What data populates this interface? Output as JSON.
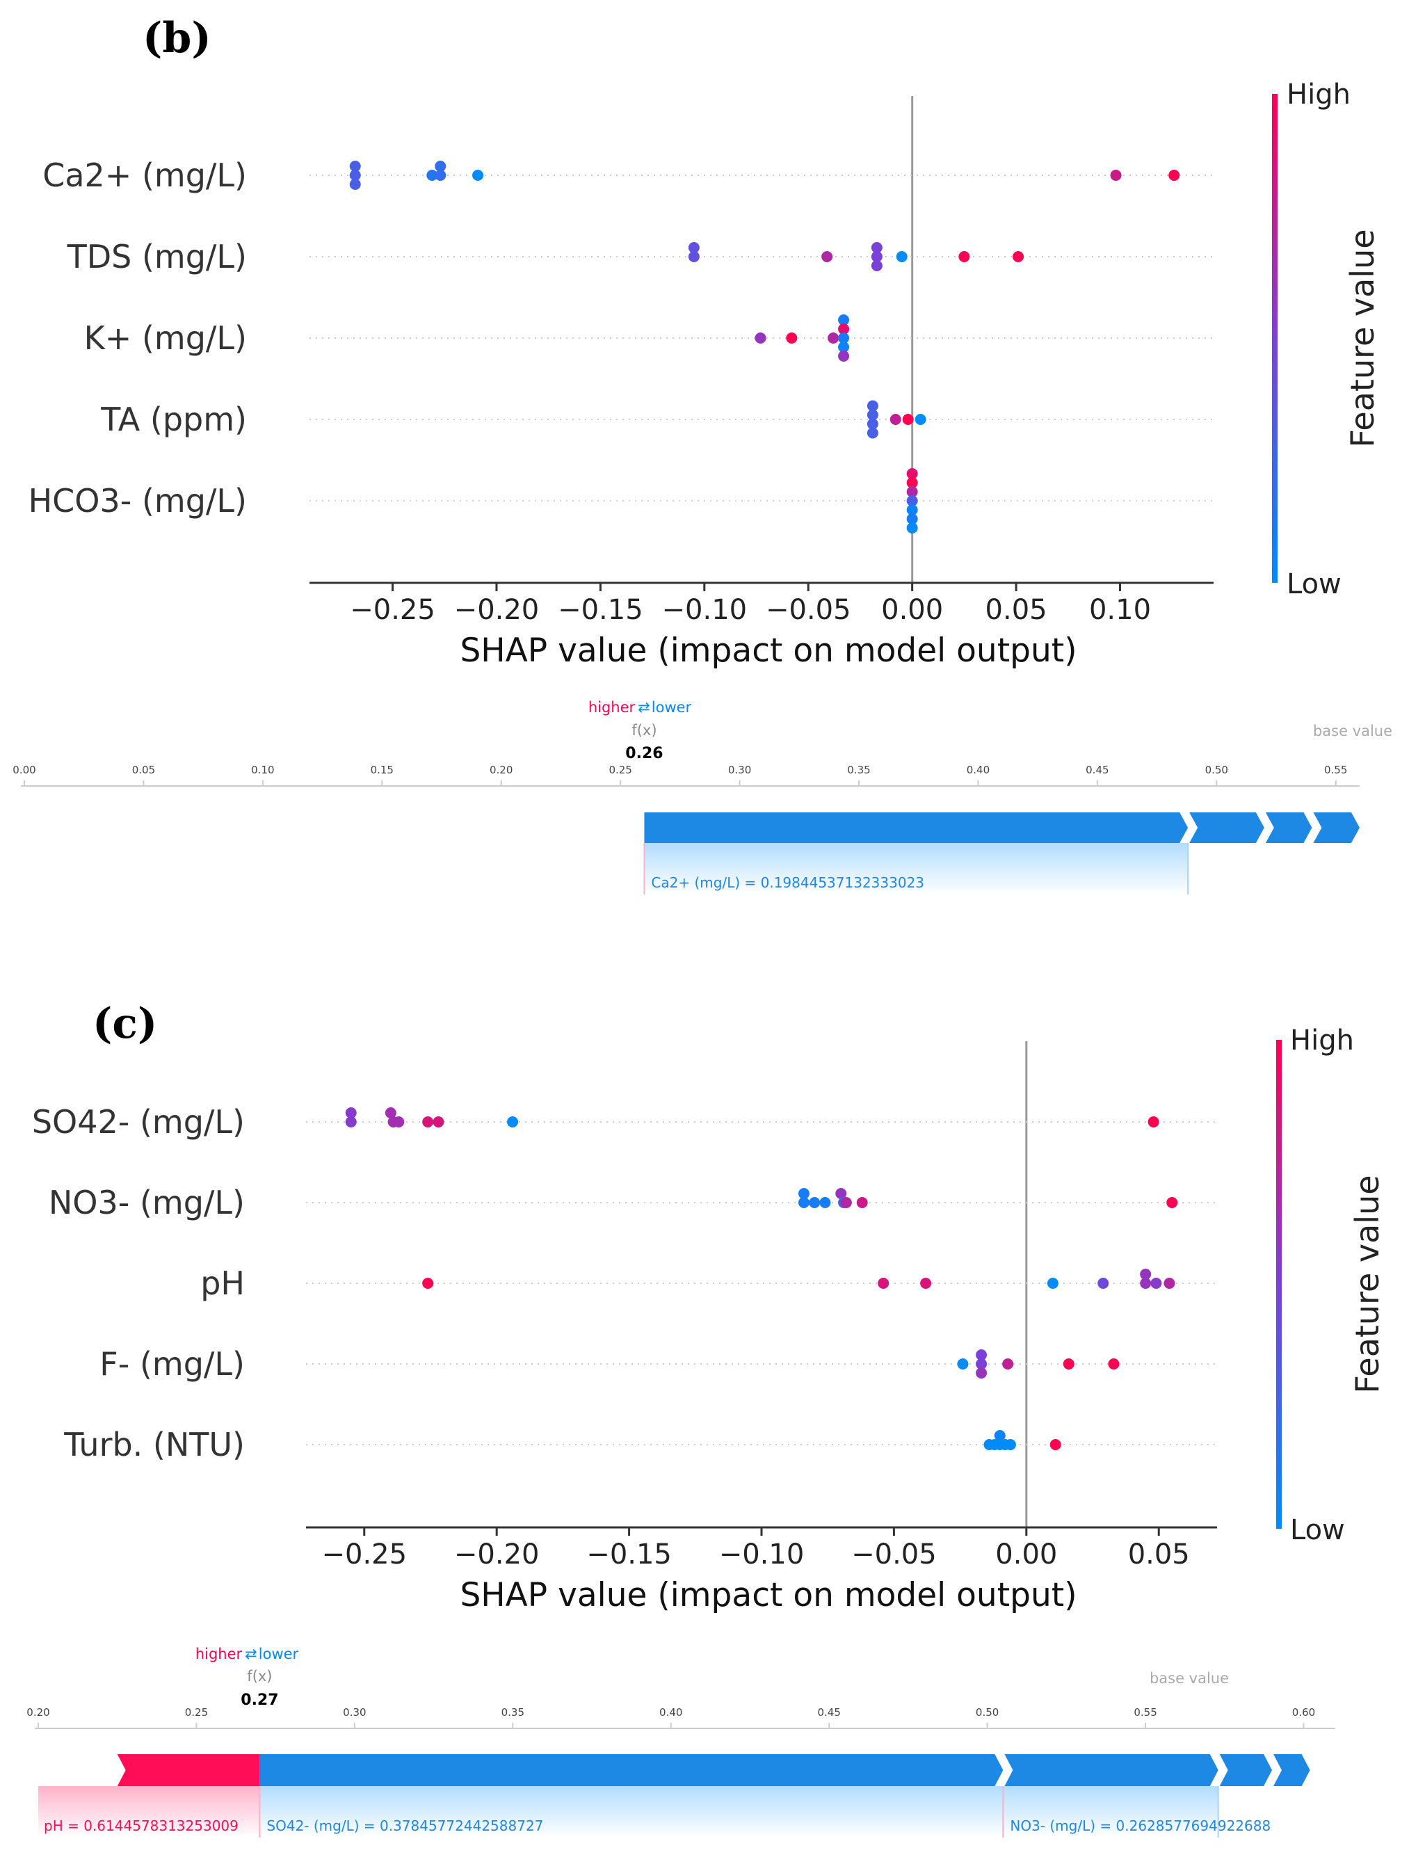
{
  "chart_data": [
    {
      "panel": "(b)",
      "type": "scatter",
      "subtype": "shap-beeswarm",
      "xlabel": "SHAP value (impact on model output)",
      "xlim": [
        -0.29,
        0.145
      ],
      "xticks": [
        -0.25,
        -0.2,
        -0.15,
        -0.1,
        -0.05,
        0.0,
        0.05,
        0.1
      ],
      "xtick_labels": [
        "−0.25",
        "−0.20",
        "−0.15",
        "−0.10",
        "−0.05",
        "0.00",
        "0.05",
        "0.10"
      ],
      "zero_line": 0.0,
      "colorbar": {
        "title": "Feature value",
        "high": "High",
        "low": "Low",
        "low_color": "#008bfb",
        "mid_color": "#7a41d8",
        "high_color": "#ff0052"
      },
      "features": [
        {
          "name": "Ca2+ (mg/L)",
          "points": [
            {
              "x": -0.268,
              "s": -1,
              "v": 0.3
            },
            {
              "x": -0.268,
              "s": 0,
              "v": 0.3
            },
            {
              "x": -0.268,
              "s": 1,
              "v": 0.3
            },
            {
              "x": -0.231,
              "s": 0,
              "v": 0.15
            },
            {
              "x": -0.227,
              "s": 0,
              "v": 0.2
            },
            {
              "x": -0.227,
              "s": -1,
              "v": 0.2
            },
            {
              "x": -0.209,
              "s": 0,
              "v": 0.0
            },
            {
              "x": 0.098,
              "s": 0,
              "v": 0.8
            },
            {
              "x": 0.126,
              "s": 0,
              "v": 1.0
            }
          ]
        },
        {
          "name": "TDS (mg/L)",
          "points": [
            {
              "x": -0.105,
              "s": -1,
              "v": 0.4
            },
            {
              "x": -0.105,
              "s": 0,
              "v": 0.4
            },
            {
              "x": -0.041,
              "s": 0,
              "v": 0.7
            },
            {
              "x": -0.017,
              "s": -1,
              "v": 0.5
            },
            {
              "x": -0.017,
              "s": 0,
              "v": 0.5
            },
            {
              "x": -0.017,
              "s": 1,
              "v": 0.5
            },
            {
              "x": -0.005,
              "s": 0,
              "v": 0.0
            },
            {
              "x": 0.025,
              "s": 0,
              "v": 1.0
            },
            {
              "x": 0.051,
              "s": 0,
              "v": 1.0
            }
          ]
        },
        {
          "name": "K+ (mg/L)",
          "points": [
            {
              "x": -0.073,
              "s": 0,
              "v": 0.6
            },
            {
              "x": -0.058,
              "s": 0,
              "v": 1.0
            },
            {
              "x": -0.038,
              "s": 0,
              "v": 0.7
            },
            {
              "x": -0.033,
              "s": -2,
              "v": 0.1
            },
            {
              "x": -0.033,
              "s": -1,
              "v": 0.9
            },
            {
              "x": -0.033,
              "s": 0,
              "v": 0.1
            },
            {
              "x": -0.033,
              "s": 1,
              "v": 0.05
            },
            {
              "x": -0.033,
              "s": 2,
              "v": 0.6
            }
          ]
        },
        {
          "name": "TA (ppm)",
          "points": [
            {
              "x": -0.019,
              "s": -1.5,
              "v": 0.3
            },
            {
              "x": -0.019,
              "s": -0.5,
              "v": 0.3
            },
            {
              "x": -0.019,
              "s": 0.5,
              "v": 0.3
            },
            {
              "x": -0.019,
              "s": 1.5,
              "v": 0.3
            },
            {
              "x": -0.008,
              "s": 0,
              "v": 0.75
            },
            {
              "x": -0.002,
              "s": 0,
              "v": 1.0
            },
            {
              "x": 0.004,
              "s": 0,
              "v": 0.0
            }
          ]
        },
        {
          "name": "HCO3- (mg/L)",
          "points": [
            {
              "x": 0.0,
              "s": -3,
              "v": 0.9
            },
            {
              "x": 0.0,
              "s": -2,
              "v": 1.0
            },
            {
              "x": 0.0,
              "s": -1,
              "v": 0.7
            },
            {
              "x": 0.0,
              "s": 0,
              "v": 0.3
            },
            {
              "x": 0.0,
              "s": 1,
              "v": 0.05
            },
            {
              "x": 0.0,
              "s": 2,
              "v": 0.1
            },
            {
              "x": 0.0,
              "s": 3,
              "v": 0.0
            }
          ]
        }
      ]
    },
    {
      "panel": "(c)",
      "type": "scatter",
      "subtype": "shap-beeswarm",
      "xlabel": "SHAP value (impact on model output)",
      "xlim": [
        -0.272,
        0.072
      ],
      "xticks": [
        -0.25,
        -0.2,
        -0.15,
        -0.1,
        -0.05,
        0.0,
        0.05
      ],
      "xtick_labels": [
        "−0.25",
        "−0.20",
        "−0.15",
        "−0.10",
        "−0.05",
        "0.00",
        "0.05"
      ],
      "zero_line": 0.0,
      "colorbar": {
        "title": "Feature value",
        "high": "High",
        "low": "Low",
        "low_color": "#008bfb",
        "mid_color": "#7a41d8",
        "high_color": "#ff0052"
      },
      "features": [
        {
          "name": "SO42- (mg/L)",
          "points": [
            {
              "x": -0.255,
              "s": -1,
              "v": 0.55
            },
            {
              "x": -0.255,
              "s": 0,
              "v": 0.55
            },
            {
              "x": -0.24,
              "s": -1,
              "v": 0.65
            },
            {
              "x": -0.239,
              "s": 0,
              "v": 0.65
            },
            {
              "x": -0.237,
              "s": 0,
              "v": 0.65
            },
            {
              "x": -0.226,
              "s": 0,
              "v": 0.85
            },
            {
              "x": -0.222,
              "s": 0,
              "v": 0.85
            },
            {
              "x": -0.194,
              "s": 0,
              "v": 0.0
            },
            {
              "x": 0.048,
              "s": 0,
              "v": 1.0
            }
          ]
        },
        {
          "name": "NO3- (mg/L)",
          "points": [
            {
              "x": -0.084,
              "s": -1,
              "v": 0.1
            },
            {
              "x": -0.084,
              "s": 0,
              "v": 0.1
            },
            {
              "x": -0.08,
              "s": 0,
              "v": 0.1
            },
            {
              "x": -0.076,
              "s": 0,
              "v": 0.1
            },
            {
              "x": -0.07,
              "s": -1,
              "v": 0.6
            },
            {
              "x": -0.069,
              "s": 0,
              "v": 0.3
            },
            {
              "x": -0.068,
              "s": 0,
              "v": 0.7
            },
            {
              "x": -0.062,
              "s": 0,
              "v": 0.8
            },
            {
              "x": 0.055,
              "s": 0,
              "v": 1.0
            }
          ]
        },
        {
          "name": "pH",
          "points": [
            {
              "x": -0.226,
              "s": 0,
              "v": 1.0
            },
            {
              "x": -0.054,
              "s": 0,
              "v": 0.85
            },
            {
              "x": -0.038,
              "s": 0,
              "v": 0.85
            },
            {
              "x": 0.01,
              "s": 0,
              "v": 0.0
            },
            {
              "x": 0.029,
              "s": 0,
              "v": 0.45
            },
            {
              "x": 0.045,
              "s": -1,
              "v": 0.6
            },
            {
              "x": 0.045,
              "s": 0,
              "v": 0.6
            },
            {
              "x": 0.049,
              "s": 0,
              "v": 0.55
            },
            {
              "x": 0.054,
              "s": 0,
              "v": 0.7
            }
          ]
        },
        {
          "name": "F- (mg/L)",
          "points": [
            {
              "x": -0.024,
              "s": 0,
              "v": 0.0
            },
            {
              "x": -0.017,
              "s": -1,
              "v": 0.5
            },
            {
              "x": -0.017,
              "s": 0,
              "v": 0.5
            },
            {
              "x": -0.017,
              "s": 1,
              "v": 0.6
            },
            {
              "x": -0.007,
              "s": 0,
              "v": 0.75
            },
            {
              "x": 0.016,
              "s": 0,
              "v": 1.0
            },
            {
              "x": 0.033,
              "s": 0,
              "v": 1.0
            }
          ]
        },
        {
          "name": "Turb. (NTU)",
          "points": [
            {
              "x": -0.01,
              "s": -1,
              "v": 0.05
            },
            {
              "x": -0.014,
              "s": 0,
              "v": 0.0
            },
            {
              "x": -0.012,
              "s": 0,
              "v": 0.0
            },
            {
              "x": -0.01,
              "s": 0,
              "v": 0.0
            },
            {
              "x": -0.008,
              "s": 0,
              "v": 0.0
            },
            {
              "x": -0.006,
              "s": 0,
              "v": 0.0
            },
            {
              "x": 0.011,
              "s": 0,
              "v": 1.0
            }
          ]
        }
      ]
    }
  ],
  "force_plots": [
    {
      "panel": "(b)",
      "legend_higher": "higher",
      "legend_arrows": "⇄",
      "legend_lower": "lower",
      "fx_label": "f(x)",
      "fx_value": 0.26,
      "fx_text": "0.26",
      "base_label": "base value",
      "base_value": 0.56,
      "axis_min": 0.0,
      "axis_max": 0.56,
      "ticks": [
        0.0,
        0.05,
        0.1,
        0.15,
        0.2,
        0.25,
        0.3,
        0.35,
        0.4,
        0.45,
        0.5,
        0.55
      ],
      "tick_labels": [
        "0.00",
        "0.05",
        "0.10",
        "0.15",
        "0.20",
        "0.25",
        "0.30",
        "0.35",
        "0.40",
        "0.45",
        "0.50",
        "0.55"
      ],
      "pink_segments": [],
      "blue_segments": [
        0.26,
        0.488,
        0.52,
        0.54,
        0.56
      ],
      "pink_annotations": [],
      "blue_annotations": [
        {
          "text": "Ca2+ (mg/L) = 0.19844537132333023",
          "from": 0.26,
          "to": 0.488
        }
      ]
    },
    {
      "panel": "(c)",
      "legend_higher": "higher",
      "legend_arrows": "⇄",
      "legend_lower": "lower",
      "fx_label": "f(x)",
      "fx_value": 0.27,
      "fx_text": "0.27",
      "base_label": "base value",
      "base_value": 0.6,
      "axis_min": 0.2,
      "axis_max": 0.61,
      "ticks": [
        0.2,
        0.25,
        0.3,
        0.35,
        0.4,
        0.45,
        0.5,
        0.55,
        0.6
      ],
      "tick_labels": [
        "0.20",
        "0.25",
        "0.30",
        "0.35",
        "0.40",
        "0.45",
        "0.50",
        "0.55",
        "0.60"
      ],
      "pink_segments": [
        0.225,
        0.27
      ],
      "blue_segments": [
        0.27,
        0.505,
        0.573,
        0.59,
        0.602
      ],
      "pink_annotations": [
        {
          "text": "pH = 0.6144578313253009",
          "from": 0.2,
          "to": 0.27
        }
      ],
      "blue_annotations": [
        {
          "text": "SO42- (mg/L) = 0.37845772442588727",
          "from": 0.27,
          "to": 0.505
        },
        {
          "text": "NO3- (mg/L) = 0.2628577694922688",
          "from": 0.505,
          "to": 0.573
        }
      ]
    }
  ]
}
